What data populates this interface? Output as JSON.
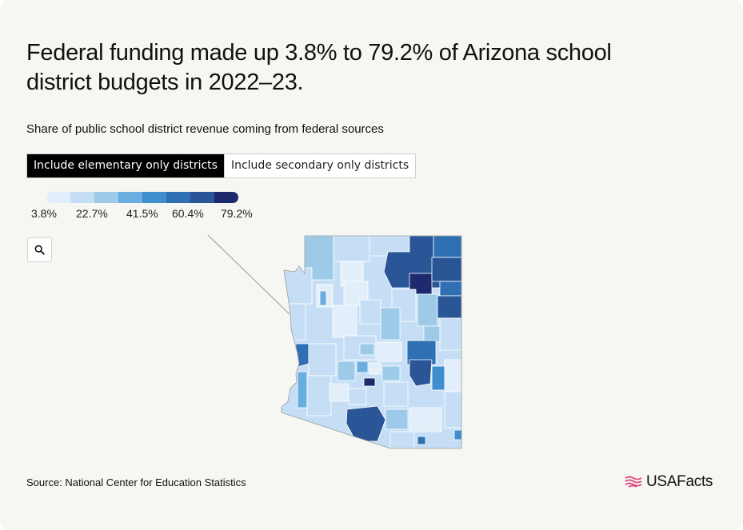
{
  "title": "Federal funding made up 3.8% to 79.2% of Arizona school district budgets in 2022–23.",
  "subtitle": "Share of public school district revenue coming from federal sources",
  "toggle": {
    "options": [
      {
        "label": "Include elementary only districts",
        "active": true
      },
      {
        "label": "Include secondary only districts",
        "active": false
      }
    ]
  },
  "legend": {
    "colors": [
      "#e3eefb",
      "#c6def5",
      "#9ecae9",
      "#6aaee0",
      "#3f8fd0",
      "#2f6fb3",
      "#2a5597",
      "#1e2a6e"
    ],
    "labels": [
      "3.8%",
      "22.7%",
      "41.5%",
      "60.4%",
      "79.2%"
    ]
  },
  "zoom": {
    "icon": "search-icon"
  },
  "map": {
    "region": "Arizona",
    "metric": "federal revenue share",
    "range_min_percent": 3.8,
    "range_max_percent": 79.2
  },
  "footer": {
    "source": "Source: National Center for Education Statistics",
    "logo_text": "USAFacts",
    "logo_icon": "flag-icon",
    "logo_color": "#e0457b"
  }
}
